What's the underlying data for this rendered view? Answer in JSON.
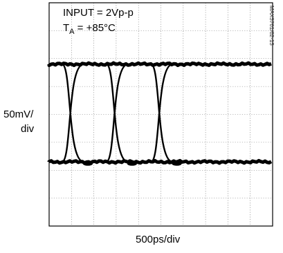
{
  "annotations": {
    "input": "INPUT = 2Vp-p",
    "temp_prefix": "T",
    "temp_sub": "A",
    "temp_suffix": " = +85°C",
    "figure_id": "MAX3761/62-13"
  },
  "chart_data": {
    "type": "line",
    "plot_kind": "eye-diagram",
    "ylabel_line1": "50mV/",
    "ylabel_line2": "div",
    "xlabel": "500ps/div",
    "grid": true,
    "grid_divisions": {
      "x": 10,
      "y": 8
    },
    "x_units_per_div_ps": 500,
    "y_units_per_div_mV": 50,
    "x_range_ps": [
      0,
      5000
    ],
    "y_range_mV": [
      -200,
      200
    ],
    "high_level_mV": 90,
    "low_level_mV": -85,
    "crossing_times_ps": [
      530,
      1520,
      2520
    ],
    "line_color": "#000000"
  }
}
